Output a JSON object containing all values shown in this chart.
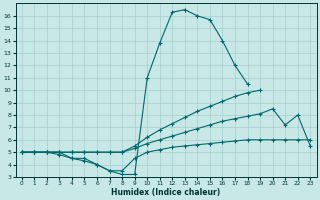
{
  "xlabel": "Humidex (Indice chaleur)",
  "xlim": [
    -0.5,
    23.5
  ],
  "ylim": [
    3,
    17
  ],
  "xticks": [
    0,
    1,
    2,
    3,
    4,
    5,
    6,
    7,
    8,
    9,
    10,
    11,
    12,
    13,
    14,
    15,
    16,
    17,
    18,
    19,
    20,
    21,
    22,
    23
  ],
  "yticks": [
    3,
    4,
    5,
    6,
    7,
    8,
    9,
    10,
    11,
    12,
    13,
    14,
    15,
    16
  ],
  "bg_color": "#c8e8e8",
  "line_color": "#006868",
  "grid_color": "#a8cccc",
  "line1": {
    "x": [
      0,
      1,
      2,
      3,
      4,
      5,
      6,
      7,
      8,
      9,
      10,
      11,
      12,
      13,
      14,
      15,
      16,
      17,
      18,
      19
    ],
    "y": [
      5,
      5,
      5,
      5,
      4.5,
      4.5,
      4.0,
      3.5,
      3.2,
      3.2,
      11.0,
      13.8,
      16.3,
      16.5,
      16.0,
      15.7,
      14.0,
      12.0,
      10.5,
      null
    ]
  },
  "line2": {
    "x": [
      0,
      1,
      2,
      3,
      4,
      5,
      6,
      7,
      8,
      9,
      10,
      11,
      12,
      13,
      14,
      15,
      16,
      17,
      18,
      19,
      20,
      21,
      22,
      23
    ],
    "y": [
      5,
      5,
      5,
      5,
      5,
      5,
      5,
      5,
      5,
      5.5,
      6.2,
      6.8,
      7.3,
      7.8,
      8.3,
      8.7,
      9.1,
      9.5,
      9.8,
      10.0,
      null,
      null,
      null,
      null
    ]
  },
  "line3": {
    "x": [
      0,
      1,
      2,
      3,
      4,
      5,
      6,
      7,
      8,
      9,
      10,
      11,
      12,
      13,
      14,
      15,
      16,
      17,
      18,
      19,
      20,
      21,
      22,
      23
    ],
    "y": [
      5,
      5,
      5,
      5,
      5,
      5,
      5,
      5,
      5,
      5.3,
      5.7,
      6.0,
      6.3,
      6.6,
      6.9,
      7.2,
      7.5,
      7.7,
      7.9,
      8.1,
      8.5,
      7.2,
      8.0,
      5.5
    ]
  },
  "line4": {
    "x": [
      0,
      1,
      2,
      3,
      4,
      5,
      6,
      7,
      8,
      9,
      10,
      11,
      12,
      13,
      14,
      15,
      16,
      17,
      18,
      19,
      20,
      21,
      22,
      23
    ],
    "y": [
      5,
      5,
      5,
      4.8,
      4.5,
      4.3,
      4.0,
      3.5,
      3.5,
      4.5,
      5.0,
      5.2,
      5.4,
      5.5,
      5.6,
      5.7,
      5.8,
      5.9,
      6.0,
      6.0,
      6.0,
      6.0,
      6.0,
      6.0
    ]
  }
}
